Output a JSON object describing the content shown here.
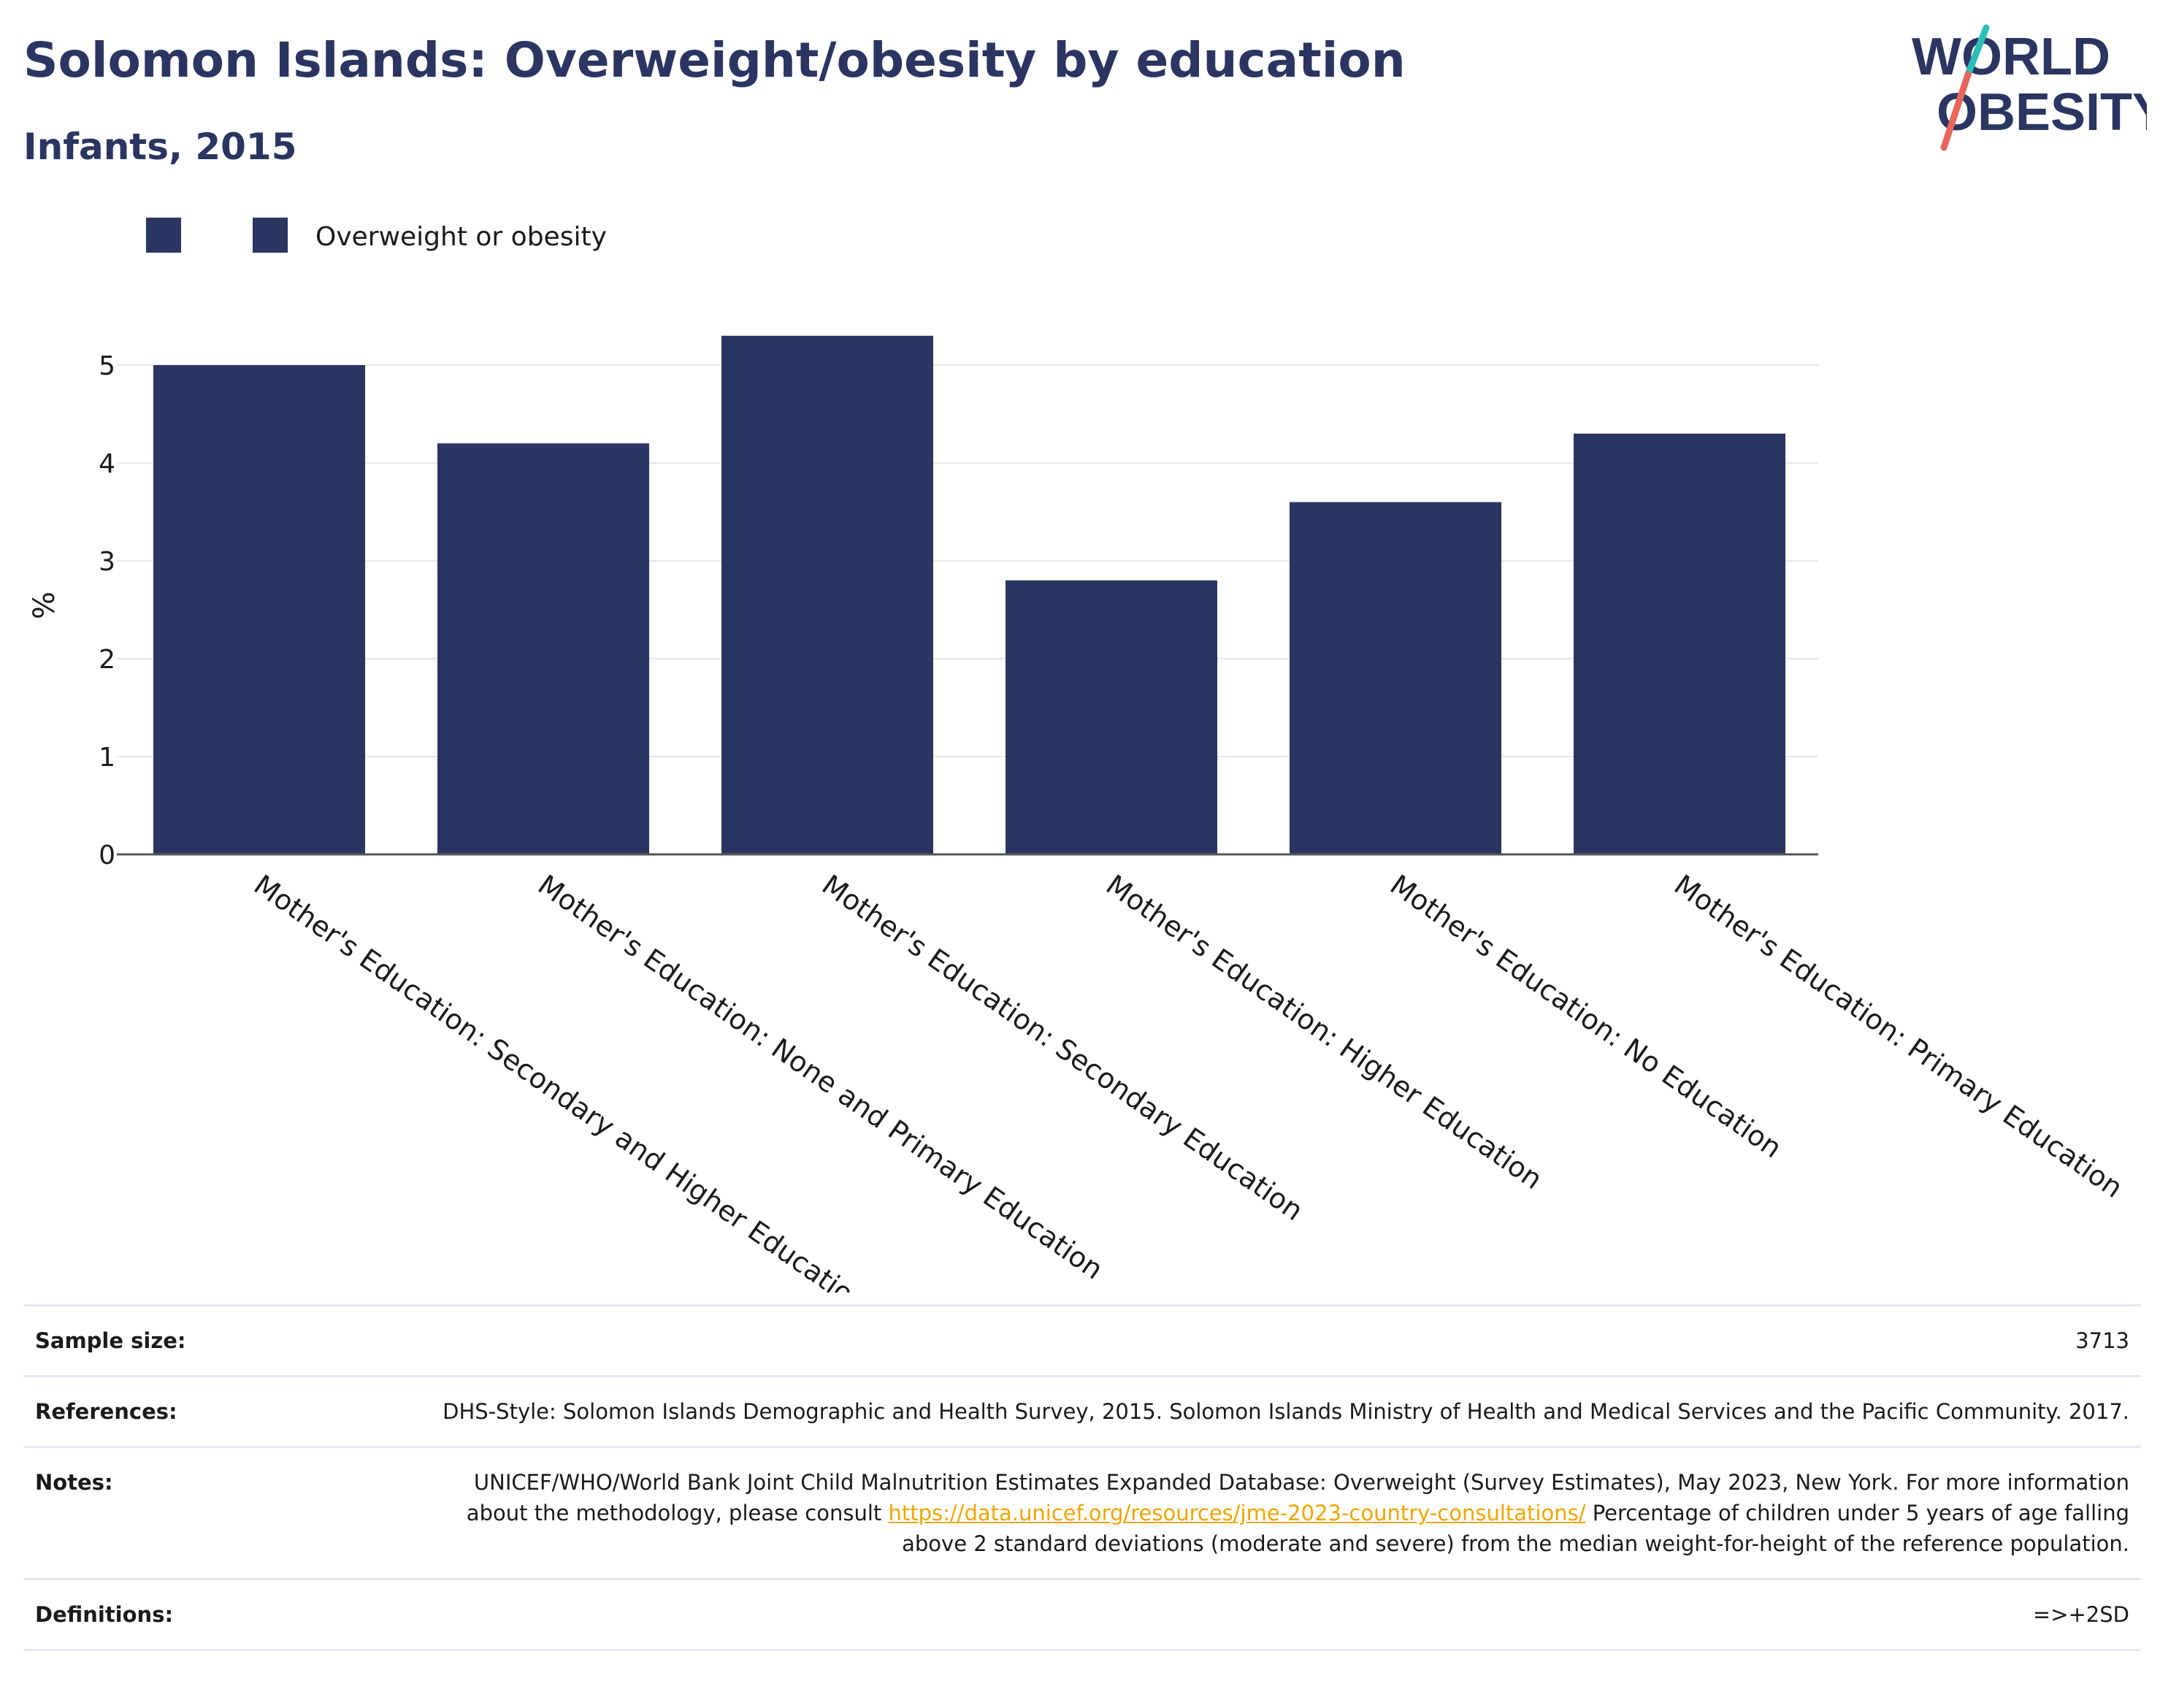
{
  "header": {
    "title": "Solomon Islands: Overweight/obesity by education",
    "subtitle": "Infants, 2015"
  },
  "logo": {
    "line1": "WORLD",
    "line2": "OBESITY",
    "colors": {
      "text": "#2b3561",
      "slash_top": "#2bbfb8",
      "slash_bottom": "#e8665a"
    }
  },
  "chart_data": {
    "type": "bar",
    "title": "Solomon Islands: Overweight/obesity by education",
    "subtitle": "Infants, 2015",
    "ylabel": "%",
    "xlabel": "",
    "ylim": [
      0,
      5.6
    ],
    "yticks": [
      0,
      1,
      2,
      3,
      4,
      5
    ],
    "grid": true,
    "legend": {
      "placement": "top-left",
      "entries": [
        {
          "label": "",
          "color": "#2b3561"
        },
        {
          "label": "Overweight or obesity",
          "color": "#2b3561"
        }
      ]
    },
    "categories": [
      "Mother's Education: Secondary and Higher Education",
      "Mother's Education: None and Primary Education",
      "Mother's Education: Secondary Education",
      "Mother's Education: Higher Education",
      "Mother's Education: No Education",
      "Mother's Education: Primary Education"
    ],
    "series": [
      {
        "name": "Overweight or obesity",
        "color": "#2b3561",
        "values": [
          5.0,
          4.2,
          5.3,
          2.8,
          3.6,
          4.3
        ]
      }
    ]
  },
  "meta": {
    "rows": [
      {
        "key": "Sample size:",
        "value": "3713"
      },
      {
        "key": "References:",
        "value": "DHS-Style: Solomon Islands Demographic and Health Survey, 2015. Solomon Islands Ministry of Health and Medical Services and the Pacific Community. 2017."
      },
      {
        "key": "Notes:",
        "value": "UNICEF/WHO/World Bank Joint Child Malnutrition Estimates Expanded Database: Overweight (Survey Estimates), May 2023, New York. For more information about the methodology, please consult",
        "link": "https://data.unicef.org/resources/jme-2023-country-consultations/",
        "value_after": "Percentage of children under 5 years of age falling above 2 standard deviations (moderate and severe) from the median weight-for-height of the reference population."
      },
      {
        "key": "Definitions:",
        "value": "=>+2SD"
      }
    ],
    "link_color": "#f0a500"
  }
}
